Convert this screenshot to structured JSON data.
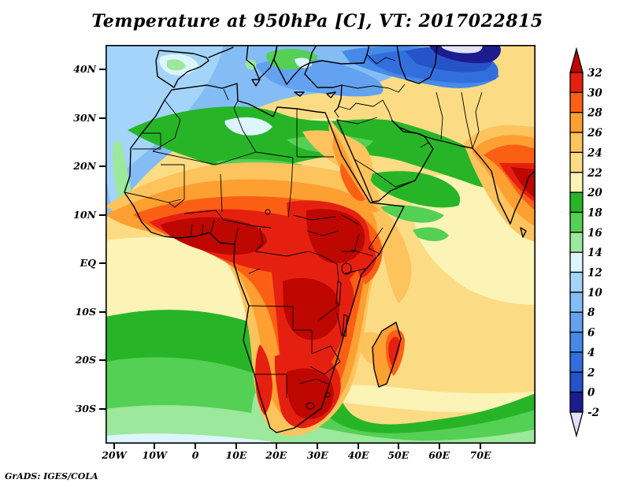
{
  "title": "Temperature at 950hPa [C], VT: 2017022815",
  "credit": "GrADS: IGES/COLA",
  "axes": {
    "lat_ticks": [
      "40N",
      "30N",
      "20N",
      "10N",
      "EQ",
      "10S",
      "20S",
      "30S"
    ],
    "lon_ticks": [
      "20W",
      "10W",
      "0",
      "10E",
      "20E",
      "30E",
      "40E",
      "50E",
      "60E",
      "70E"
    ]
  },
  "colorbar": {
    "boundary_labels_top_to_bottom": [
      "32",
      "30",
      "28",
      "26",
      "24",
      "22",
      "20",
      "18",
      "16",
      "14",
      "12",
      "10",
      "8",
      "6",
      "4",
      "2",
      "0",
      "-2"
    ],
    "colors_low_to_high": [
      "#e2e2fa",
      "#1c1c8e",
      "#2553c8",
      "#326fdc",
      "#468ae8",
      "#62a2f0",
      "#84bcf5",
      "#a4d4fa",
      "#ddf5fc",
      "#9ce89c",
      "#54d054",
      "#27b527",
      "#fcf3b6",
      "#fbdc84",
      "#fdc35c",
      "#fe9f32",
      "#fb5f14",
      "#e62010",
      "#bd0700"
    ]
  },
  "chart_data": {
    "type": "heatmap",
    "title": "Temperature at 950hPa [C], VT: 2017022815",
    "variable": "Temperature",
    "level": "950hPa",
    "units": "C",
    "valid_time": "2017022815",
    "x_axis": {
      "label": "longitude",
      "tick_labels": [
        "20W",
        "10W",
        "0",
        "10E",
        "20E",
        "30E",
        "40E",
        "50E",
        "60E",
        "70E"
      ],
      "range_deg": [
        -22,
        84
      ]
    },
    "y_axis": {
      "label": "latitude",
      "tick_labels": [
        "40N",
        "30N",
        "20N",
        "10N",
        "EQ",
        "10S",
        "20S",
        "30S"
      ],
      "range_deg": [
        -37,
        45
      ]
    },
    "contour_interval_c": 2,
    "shade_levels_c": [
      -2,
      0,
      2,
      4,
      6,
      8,
      10,
      12,
      14,
      16,
      18,
      20,
      22,
      24,
      26,
      28,
      30,
      32
    ],
    "legend_position": "right",
    "readings": [
      {
        "region": "West Africa / Sahel (Senegal-Mali)",
        "temp_c": "30 to >32"
      },
      {
        "region": "Sudan / Chad",
        "temp_c": "30 to >32"
      },
      {
        "region": "Congo Basin",
        "temp_c": "28 to >32"
      },
      {
        "region": "Ethiopia / Horn of Africa",
        "temp_c": "28-32"
      },
      {
        "region": "Southern Africa interior (Namibia-Botswana-South Africa)",
        "temp_c": "28 to >32"
      },
      {
        "region": "Madagascar interior",
        "temp_c": "26-32"
      },
      {
        "region": "Central Sahara",
        "temp_c": "20-26"
      },
      {
        "region": "Maghreb / Libyan-Egyptian coast",
        "temp_c": "14-20"
      },
      {
        "region": "Mediterranean and southern Europe",
        "temp_c": "4-12"
      },
      {
        "region": "Anatolia / Black Sea (cold core)",
        "temp_c": "-2 to 4, locally < -2"
      },
      {
        "region": "Levant / Iraq / northern Arabia",
        "temp_c": "14-20"
      },
      {
        "region": "Southern Arabia / Gulf of Aden",
        "temp_c": "16-22"
      },
      {
        "region": "Western India",
        "temp_c": "28 to >32"
      },
      {
        "region": "Tropical Atlantic and Indian Ocean",
        "temp_c": "20-26"
      },
      {
        "region": "South Atlantic south of 10S",
        "temp_c": "14-20"
      },
      {
        "region": "Far southern ocean (30-37S)",
        "temp_c": "12-16"
      },
      {
        "region": "NE Atlantic / Canary region",
        "temp_c": "8-14"
      }
    ]
  }
}
